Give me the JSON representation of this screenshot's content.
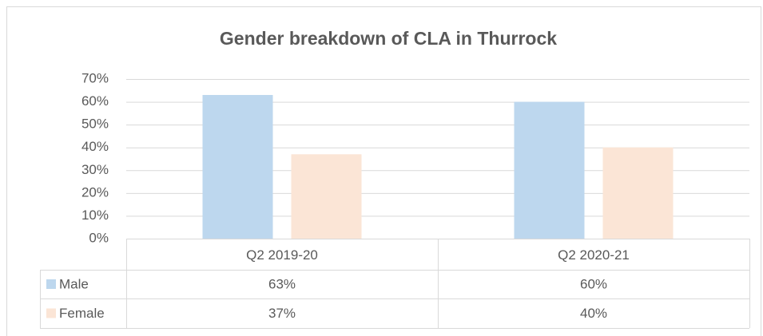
{
  "chart_data": {
    "type": "bar",
    "title": "Gender breakdown of CLA in Thurrock",
    "categories": [
      "Q2 2019-20",
      "Q2 2020-21"
    ],
    "series": [
      {
        "name": "Male",
        "color": "#bdd7ee",
        "values": [
          63,
          60
        ],
        "value_labels": [
          "63%",
          "60%"
        ]
      },
      {
        "name": "Female",
        "color": "#fbe5d6",
        "values": [
          37,
          40
        ],
        "value_labels": [
          "37%",
          "40%"
        ]
      }
    ],
    "ylim": [
      0,
      70
    ],
    "yticks": [
      {
        "value": 0,
        "label": "0%"
      },
      {
        "value": 10,
        "label": "10%"
      },
      {
        "value": 20,
        "label": "20%"
      },
      {
        "value": 30,
        "label": "30%"
      },
      {
        "value": 40,
        "label": "40%"
      },
      {
        "value": 50,
        "label": "50%"
      },
      {
        "value": 60,
        "label": "60%"
      },
      {
        "value": 70,
        "label": "70%"
      }
    ],
    "grid": true,
    "data_table": true
  }
}
